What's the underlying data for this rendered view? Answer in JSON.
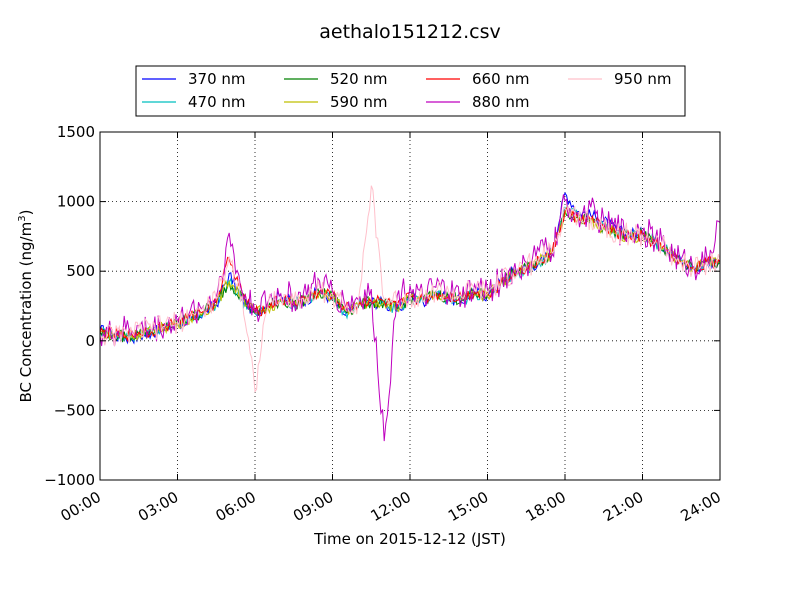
{
  "chart_data": {
    "type": "line",
    "title": "aethalo151212.csv",
    "xlabel": "Time on 2015-12-12 (JST)",
    "ylabel": "BC Concentration (ng/m³)",
    "ylabel_main": "BC Concentration (ng/m",
    "ylabel_sup": "3",
    "ylabel_end": ")",
    "xlim": [
      0,
      24
    ],
    "ylim": [
      -1000,
      1500
    ],
    "grid": true,
    "legend_position": "top-center",
    "x_ticks": [
      0,
      3,
      6,
      9,
      12,
      15,
      18,
      21,
      24
    ],
    "x_tick_labels": [
      "00:00",
      "03:00",
      "06:00",
      "09:00",
      "12:00",
      "15:00",
      "18:00",
      "21:00",
      "24:00"
    ],
    "y_ticks": [
      -1000,
      -500,
      0,
      500,
      1000,
      1500
    ],
    "y_tick_labels": [
      "−1000",
      "−500",
      "0",
      "500",
      "1000",
      "1500"
    ],
    "x_hours": [
      0,
      0.5,
      1,
      1.5,
      2,
      2.5,
      3,
      3.5,
      4,
      4.5,
      5,
      5.5,
      6,
      6.5,
      7,
      7.5,
      8,
      8.5,
      9,
      9.5,
      10,
      10.5,
      11,
      11.5,
      12,
      12.5,
      13,
      13.5,
      14,
      14.5,
      15,
      15.5,
      16,
      16.5,
      17,
      17.5,
      18,
      18.5,
      19,
      19.5,
      20,
      20.5,
      21,
      21.5,
      22,
      22.5,
      23,
      23.5,
      24
    ],
    "series": [
      {
        "name": "370 nm",
        "color": "#0000ff",
        "values": [
          80,
          40,
          20,
          30,
          60,
          80,
          120,
          150,
          200,
          260,
          480,
          300,
          200,
          260,
          330,
          260,
          300,
          350,
          300,
          180,
          250,
          280,
          270,
          210,
          320,
          280,
          350,
          300,
          280,
          350,
          320,
          420,
          500,
          530,
          560,
          640,
          1060,
          930,
          900,
          860,
          790,
          770,
          770,
          720,
          650,
          570,
          520,
          560,
          580
        ]
      },
      {
        "name": "470 nm",
        "color": "#00bfbf",
        "values": [
          70,
          40,
          30,
          40,
          60,
          90,
          120,
          160,
          200,
          260,
          420,
          300,
          190,
          240,
          300,
          260,
          300,
          340,
          310,
          200,
          250,
          270,
          260,
          220,
          300,
          280,
          330,
          300,
          290,
          340,
          320,
          410,
          480,
          520,
          560,
          630,
          960,
          900,
          880,
          830,
          780,
          760,
          760,
          710,
          640,
          560,
          520,
          560,
          560
        ]
      },
      {
        "name": "520 nm",
        "color": "#008000",
        "values": [
          60,
          40,
          30,
          50,
          60,
          100,
          120,
          160,
          210,
          270,
          420,
          320,
          190,
          240,
          290,
          260,
          300,
          340,
          320,
          210,
          250,
          280,
          270,
          230,
          310,
          290,
          340,
          310,
          300,
          340,
          330,
          410,
          480,
          520,
          570,
          630,
          940,
          880,
          870,
          820,
          770,
          760,
          760,
          700,
          640,
          560,
          520,
          560,
          560
        ]
      },
      {
        "name": "590 nm",
        "color": "#bfbf00",
        "values": [
          60,
          50,
          30,
          50,
          70,
          100,
          130,
          160,
          210,
          270,
          430,
          320,
          200,
          240,
          290,
          270,
          300,
          340,
          320,
          220,
          260,
          280,
          280,
          230,
          310,
          290,
          340,
          310,
          300,
          340,
          330,
          410,
          480,
          520,
          570,
          630,
          920,
          870,
          860,
          810,
          770,
          750,
          750,
          700,
          640,
          560,
          520,
          560,
          560
        ]
      },
      {
        "name": "660 nm",
        "color": "#ff0000",
        "values": [
          60,
          50,
          40,
          60,
          70,
          110,
          130,
          170,
          220,
          280,
          600,
          340,
          200,
          250,
          300,
          270,
          310,
          350,
          320,
          230,
          260,
          290,
          280,
          240,
          320,
          290,
          340,
          320,
          310,
          350,
          340,
          410,
          490,
          520,
          570,
          630,
          930,
          880,
          870,
          820,
          770,
          750,
          750,
          700,
          640,
          560,
          520,
          560,
          570
        ]
      },
      {
        "name": "880 nm",
        "color": "#bf00bf",
        "values": [
          60,
          40,
          80,
          100,
          80,
          120,
          140,
          200,
          250,
          320,
          760,
          350,
          220,
          280,
          350,
          300,
          330,
          420,
          350,
          260,
          300,
          350,
          -700,
          320,
          400,
          300,
          380,
          350,
          300,
          390,
          360,
          430,
          500,
          540,
          650,
          640,
          1000,
          900,
          940,
          850,
          800,
          780,
          800,
          730,
          660,
          580,
          540,
          580,
          850
        ]
      },
      {
        "name": "950 nm",
        "color": "#ffc0cb",
        "values": [
          50,
          40,
          60,
          80,
          70,
          110,
          130,
          180,
          230,
          300,
          600,
          330,
          -350,
          260,
          310,
          290,
          320,
          370,
          330,
          240,
          280,
          1100,
          300,
          280,
          330,
          300,
          360,
          340,
          320,
          370,
          340,
          420,
          490,
          530,
          590,
          630,
          950,
          880,
          880,
          830,
          780,
          760,
          760,
          710,
          640,
          560,
          520,
          560,
          580
        ]
      }
    ]
  }
}
